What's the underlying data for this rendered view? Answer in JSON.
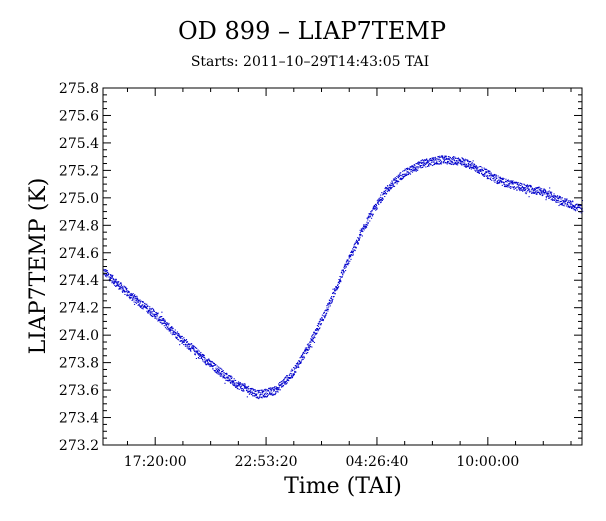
{
  "chart_data": {
    "type": "scatter",
    "title": "OD 899 – LIAP7TEMP",
    "subtitle": "Starts: 2011–10–29T14:43:05 TAI",
    "xlabel": "Time (TAI)",
    "ylabel": "LIAP7TEMP (K)",
    "xlim": [
      "2011-10-29T14:43:05",
      "2011-10-30T14:43:05"
    ],
    "ylim": [
      273.2,
      275.8
    ],
    "x_tick_labels": [
      {
        "time": "2011-10-29T17:20:00",
        "label": "17:20:00"
      },
      {
        "time": "2011-10-29T22:53:20",
        "label": "22:53:20"
      },
      {
        "time": "2011-10-30T04:26:40",
        "label": "04:26:40"
      },
      {
        "time": "2011-10-30T10:00:00",
        "label": "10:00:00"
      }
    ],
    "y_ticks": [
      273.2,
      273.4,
      273.6,
      273.8,
      274.0,
      274.2,
      274.4,
      274.6,
      274.8,
      275.0,
      275.2,
      275.4,
      275.6,
      275.8
    ],
    "y_tick_labels": [
      "273.2",
      "273.4",
      "273.6",
      "273.8",
      "274.0",
      "274.2",
      "274.4",
      "274.6",
      "274.8",
      "275.0",
      "275.2",
      "275.4",
      "275.6",
      "275.8"
    ],
    "grid": false,
    "point_color": "#0000cc",
    "series": [
      {
        "points": [
          {
            "time": "2011-10-29T14:43:05",
            "y": 274.47
          },
          {
            "time": "2011-10-29T16:00:00",
            "y": 274.3
          },
          {
            "time": "2011-10-29T17:20:00",
            "y": 274.15
          },
          {
            "time": "2011-10-29T18:40:00",
            "y": 273.97
          },
          {
            "time": "2011-10-29T20:00:00",
            "y": 273.8
          },
          {
            "time": "2011-10-29T21:20:00",
            "y": 273.65
          },
          {
            "time": "2011-10-29T22:30:00",
            "y": 273.57
          },
          {
            "time": "2011-10-29T23:20:00",
            "y": 273.6
          },
          {
            "time": "2011-10-30T00:10:00",
            "y": 273.72
          },
          {
            "time": "2011-10-30T01:00:00",
            "y": 273.92
          },
          {
            "time": "2011-10-30T02:00:00",
            "y": 274.22
          },
          {
            "time": "2011-10-30T03:00:00",
            "y": 274.55
          },
          {
            "time": "2011-10-30T04:00:00",
            "y": 274.85
          },
          {
            "time": "2011-10-30T04:50:00",
            "y": 275.05
          },
          {
            "time": "2011-10-30T05:40:00",
            "y": 275.17
          },
          {
            "time": "2011-10-30T06:40:00",
            "y": 275.25
          },
          {
            "time": "2011-10-30T07:40:00",
            "y": 275.28
          },
          {
            "time": "2011-10-30T08:40:00",
            "y": 275.27
          },
          {
            "time": "2011-10-30T09:40:00",
            "y": 275.2
          },
          {
            "time": "2011-10-30T10:40:00",
            "y": 275.12
          },
          {
            "time": "2011-10-30T11:40:00",
            "y": 275.08
          },
          {
            "time": "2011-10-30T12:40:00",
            "y": 275.05
          },
          {
            "time": "2011-10-30T13:40:00",
            "y": 274.98
          },
          {
            "time": "2011-10-30T14:43:05",
            "y": 274.92
          }
        ]
      }
    ]
  }
}
